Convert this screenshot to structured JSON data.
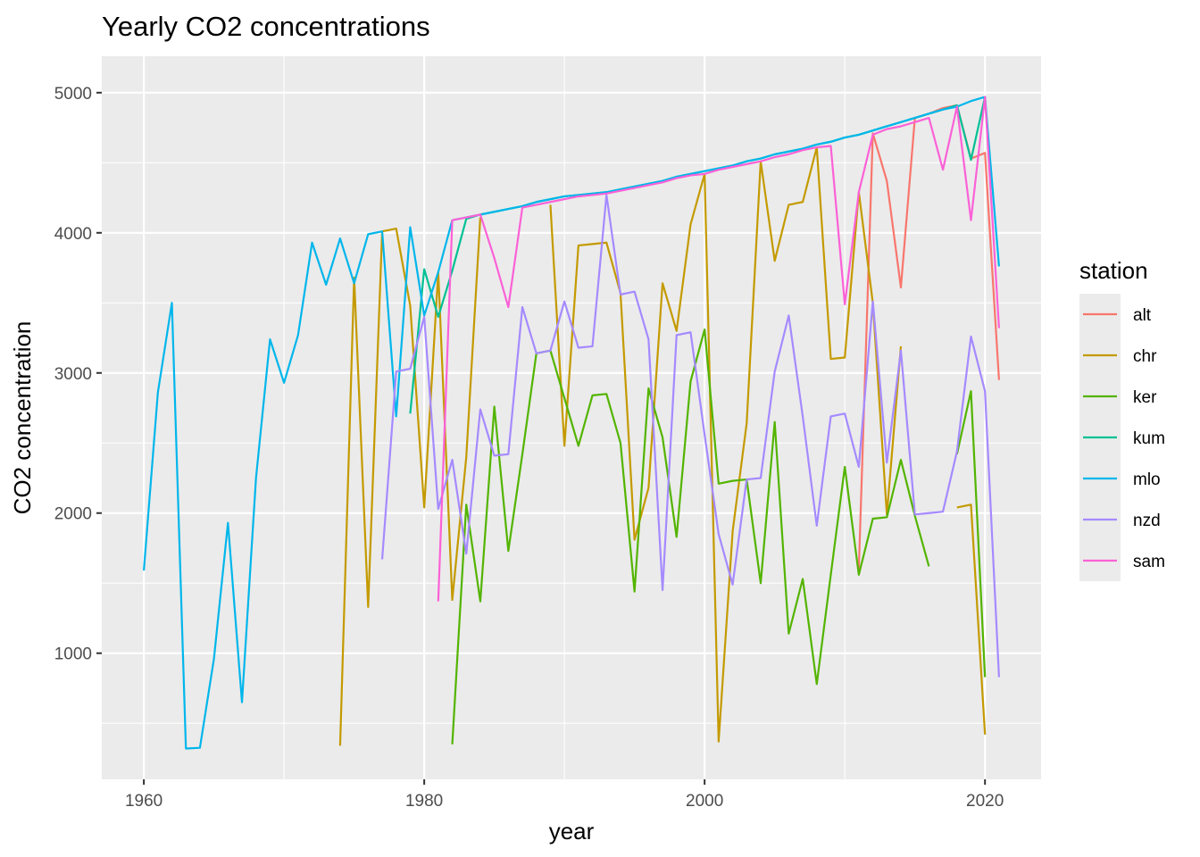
{
  "chart_data": {
    "type": "line",
    "title": "Yearly CO2 concentrations",
    "xlabel": "year",
    "ylabel": "CO2 concentration",
    "xlim": [
      1957,
      2024
    ],
    "ylim": [
      100,
      5260
    ],
    "xticks": [
      1960,
      1980,
      2000,
      2020
    ],
    "yticks": [
      1000,
      2000,
      3000,
      4000,
      5000
    ],
    "grid": true,
    "legend": {
      "title": "station",
      "position": "right"
    },
    "series": [
      {
        "name": "alt",
        "color": "#F8766D",
        "points": [
          [
            2011,
            1600
          ],
          [
            2012,
            4710
          ],
          [
            2013,
            4370
          ],
          [
            2014,
            3610
          ],
          [
            2015,
            4820
          ],
          [
            2016,
            4850
          ],
          [
            2017,
            4890
          ],
          [
            2018,
            4910
          ],
          [
            2019,
            4530
          ],
          [
            2020,
            4570
          ],
          [
            2021,
            2950
          ]
        ]
      },
      {
        "name": "chr",
        "color": "#C49A00",
        "points": [
          [
            1974,
            340
          ],
          [
            1975,
            3680
          ],
          [
            1976,
            1330
          ],
          [
            1977,
            4010
          ],
          [
            1978,
            4030
          ],
          [
            1979,
            3480
          ],
          [
            1980,
            2040
          ],
          [
            1981,
            3720
          ],
          [
            1982,
            1380
          ],
          [
            1983,
            2400
          ],
          [
            1984,
            4110
          ],
          [
            null,
            null
          ],
          [
            1989,
            4200
          ],
          [
            1990,
            2480
          ],
          [
            1991,
            3910
          ],
          [
            1992,
            3920
          ],
          [
            1993,
            3930
          ],
          [
            1994,
            3570
          ],
          [
            1995,
            1810
          ],
          [
            1996,
            2180
          ],
          [
            1997,
            3640
          ],
          [
            1998,
            3300
          ],
          [
            1999,
            4060
          ],
          [
            2000,
            4420
          ],
          [
            2001,
            370
          ],
          [
            2002,
            1870
          ],
          [
            2003,
            2640
          ],
          [
            2004,
            4510
          ],
          [
            2005,
            3800
          ],
          [
            2006,
            4200
          ],
          [
            2007,
            4220
          ],
          [
            2008,
            4610
          ],
          [
            2009,
            3100
          ],
          [
            2010,
            3110
          ],
          [
            2011,
            4290
          ],
          [
            2012,
            3500
          ],
          [
            2013,
            1990
          ],
          [
            2014,
            3190
          ],
          [
            null,
            null
          ],
          [
            2018,
            2040
          ],
          [
            2019,
            2060
          ],
          [
            2020,
            420
          ]
        ]
      },
      {
        "name": "ker",
        "color": "#53B400",
        "points": [
          [
            1982,
            350
          ],
          [
            1983,
            2060
          ],
          [
            1984,
            1370
          ],
          [
            1985,
            2760
          ],
          [
            1986,
            1730
          ],
          [
            1987,
            2420
          ],
          [
            1988,
            3140
          ],
          [
            1989,
            3160
          ],
          [
            1990,
            2820
          ],
          [
            1991,
            2480
          ],
          [
            1992,
            2840
          ],
          [
            1993,
            2850
          ],
          [
            1994,
            2500
          ],
          [
            1995,
            1440
          ],
          [
            1996,
            2890
          ],
          [
            1997,
            2540
          ],
          [
            1998,
            1830
          ],
          [
            1999,
            2940
          ],
          [
            2000,
            3310
          ],
          [
            2001,
            2210
          ],
          [
            2002,
            2230
          ],
          [
            2003,
            2240
          ],
          [
            2004,
            1500
          ],
          [
            2005,
            2650
          ],
          [
            2006,
            1140
          ],
          [
            2007,
            1530
          ],
          [
            2008,
            780
          ],
          [
            2009,
            1560
          ],
          [
            2010,
            2330
          ],
          [
            2011,
            1560
          ],
          [
            2012,
            1960
          ],
          [
            2013,
            1970
          ],
          [
            2014,
            2380
          ],
          [
            2015,
            1980
          ],
          [
            2016,
            1620
          ],
          [
            null,
            null
          ],
          [
            2018,
            2420
          ],
          [
            2019,
            2870
          ],
          [
            2020,
            830
          ]
        ]
      },
      {
        "name": "kum",
        "color": "#00C094",
        "points": [
          [
            1979,
            2710
          ],
          [
            1980,
            3740
          ],
          [
            1981,
            3400
          ],
          [
            1982,
            3730
          ],
          [
            1983,
            4100
          ],
          [
            1984,
            4130
          ],
          [
            1985,
            4150
          ],
          [
            1986,
            4170
          ],
          [
            1987,
            4190
          ],
          [
            1988,
            4220
          ],
          [
            1989,
            4240
          ],
          [
            1990,
            4260
          ],
          [
            1991,
            4270
          ],
          [
            1992,
            4280
          ],
          [
            1993,
            4290
          ],
          [
            1994,
            4310
          ],
          [
            1995,
            4330
          ],
          [
            1996,
            4350
          ],
          [
            1997,
            4370
          ],
          [
            1998,
            4400
          ],
          [
            1999,
            4420
          ],
          [
            2000,
            4440
          ],
          [
            2001,
            4460
          ],
          [
            2002,
            4480
          ],
          [
            2003,
            4510
          ],
          [
            2004,
            4530
          ],
          [
            2005,
            4560
          ],
          [
            2006,
            4580
          ],
          [
            2007,
            4600
          ],
          [
            2008,
            4630
          ],
          [
            2009,
            4650
          ],
          [
            2010,
            4680
          ],
          [
            2011,
            4700
          ],
          [
            2012,
            4730
          ],
          [
            2013,
            4760
          ],
          [
            2014,
            4790
          ],
          [
            2015,
            4820
          ],
          [
            2016,
            4850
          ],
          [
            2017,
            4880
          ],
          [
            2018,
            4910
          ],
          [
            2019,
            4520
          ],
          [
            2020,
            4970
          ]
        ]
      },
      {
        "name": "mlo",
        "color": "#00B6EB",
        "points": [
          [
            1960,
            1590
          ],
          [
            1961,
            2860
          ],
          [
            1962,
            3500
          ],
          [
            1963,
            320
          ],
          [
            1964,
            325
          ],
          [
            1965,
            960
          ],
          [
            1966,
            1930
          ],
          [
            1967,
            650
          ],
          [
            1968,
            2250
          ],
          [
            1969,
            3240
          ],
          [
            1970,
            2930
          ],
          [
            1971,
            3270
          ],
          [
            1972,
            3930
          ],
          [
            1973,
            3630
          ],
          [
            1974,
            3960
          ],
          [
            1975,
            3640
          ],
          [
            1976,
            3990
          ],
          [
            1977,
            4010
          ],
          [
            1978,
            2690
          ],
          [
            1979,
            4040
          ],
          [
            1980,
            3410
          ],
          [
            1981,
            3720
          ],
          [
            1982,
            4090
          ],
          [
            1983,
            4110
          ],
          [
            1984,
            4130
          ],
          [
            1985,
            4150
          ],
          [
            1986,
            4170
          ],
          [
            1987,
            4190
          ],
          [
            1988,
            4220
          ],
          [
            1989,
            4240
          ],
          [
            1990,
            4260
          ],
          [
            1991,
            4270
          ],
          [
            1992,
            4280
          ],
          [
            1993,
            4290
          ],
          [
            1994,
            4310
          ],
          [
            1995,
            4330
          ],
          [
            1996,
            4350
          ],
          [
            1997,
            4370
          ],
          [
            1998,
            4400
          ],
          [
            1999,
            4420
          ],
          [
            2000,
            4440
          ],
          [
            2001,
            4460
          ],
          [
            2002,
            4480
          ],
          [
            2003,
            4510
          ],
          [
            2004,
            4530
          ],
          [
            2005,
            4560
          ],
          [
            2006,
            4580
          ],
          [
            2007,
            4600
          ],
          [
            2008,
            4630
          ],
          [
            2009,
            4650
          ],
          [
            2010,
            4680
          ],
          [
            2011,
            4700
          ],
          [
            2012,
            4730
          ],
          [
            2013,
            4760
          ],
          [
            2014,
            4790
          ],
          [
            2015,
            4820
          ],
          [
            2016,
            4850
          ],
          [
            2017,
            4880
          ],
          [
            2018,
            4900
          ],
          [
            2019,
            4940
          ],
          [
            2020,
            4970
          ],
          [
            2021,
            3760
          ]
        ]
      },
      {
        "name": "nzd",
        "color": "#A58AFF",
        "points": [
          [
            1977,
            1670
          ],
          [
            1978,
            3010
          ],
          [
            1979,
            3030
          ],
          [
            1980,
            3400
          ],
          [
            1981,
            2030
          ],
          [
            1982,
            2380
          ],
          [
            1983,
            1710
          ],
          [
            1984,
            2740
          ],
          [
            1985,
            2410
          ],
          [
            1986,
            2420
          ],
          [
            1987,
            3470
          ],
          [
            1988,
            3140
          ],
          [
            1989,
            3160
          ],
          [
            1990,
            3510
          ],
          [
            1991,
            3180
          ],
          [
            1992,
            3190
          ],
          [
            1993,
            4270
          ],
          [
            1994,
            3560
          ],
          [
            1995,
            3580
          ],
          [
            1996,
            3240
          ],
          [
            1997,
            1450
          ],
          [
            1998,
            3270
          ],
          [
            1999,
            3290
          ],
          [
            2000,
            2560
          ],
          [
            2001,
            1850
          ],
          [
            2002,
            1490
          ],
          [
            2003,
            2240
          ],
          [
            2004,
            2250
          ],
          [
            2005,
            3010
          ],
          [
            2006,
            3410
          ],
          [
            2007,
            2690
          ],
          [
            2008,
            1910
          ],
          [
            2009,
            2690
          ],
          [
            2010,
            2710
          ],
          [
            2011,
            2330
          ],
          [
            2012,
            3510
          ],
          [
            2013,
            2360
          ],
          [
            2014,
            3160
          ],
          [
            2015,
            1990
          ],
          [
            2016,
            2000
          ],
          [
            2017,
            2010
          ],
          [
            2018,
            2440
          ],
          [
            2019,
            3260
          ],
          [
            2020,
            2870
          ],
          [
            2021,
            830
          ]
        ]
      },
      {
        "name": "sam",
        "color": "#FB61D7",
        "points": [
          [
            1981,
            1370
          ],
          [
            1982,
            4090
          ],
          [
            1983,
            4110
          ],
          [
            1984,
            4130
          ],
          [
            1985,
            3820
          ],
          [
            1986,
            3470
          ],
          [
            1987,
            4180
          ],
          [
            1988,
            4200
          ],
          [
            1989,
            4220
          ],
          [
            1990,
            4240
          ],
          [
            1991,
            4260
          ],
          [
            1992,
            4270
          ],
          [
            1993,
            4280
          ],
          [
            1994,
            4300
          ],
          [
            1995,
            4320
          ],
          [
            1996,
            4340
          ],
          [
            1997,
            4360
          ],
          [
            1998,
            4390
          ],
          [
            1999,
            4410
          ],
          [
            2000,
            4420
          ],
          [
            2001,
            4450
          ],
          [
            2002,
            4470
          ],
          [
            2003,
            4490
          ],
          [
            2004,
            4510
          ],
          [
            2005,
            4540
          ],
          [
            2006,
            4560
          ],
          [
            2007,
            4590
          ],
          [
            2008,
            4610
          ],
          [
            2009,
            4620
          ],
          [
            2010,
            3490
          ],
          [
            2011,
            4290
          ],
          [
            2012,
            4700
          ],
          [
            2013,
            4740
          ],
          [
            2014,
            4760
          ],
          [
            2015,
            4790
          ],
          [
            2016,
            4820
          ],
          [
            2017,
            4450
          ],
          [
            2018,
            4900
          ],
          [
            2019,
            4090
          ],
          [
            2020,
            4970
          ],
          [
            2021,
            3320
          ]
        ]
      }
    ]
  }
}
